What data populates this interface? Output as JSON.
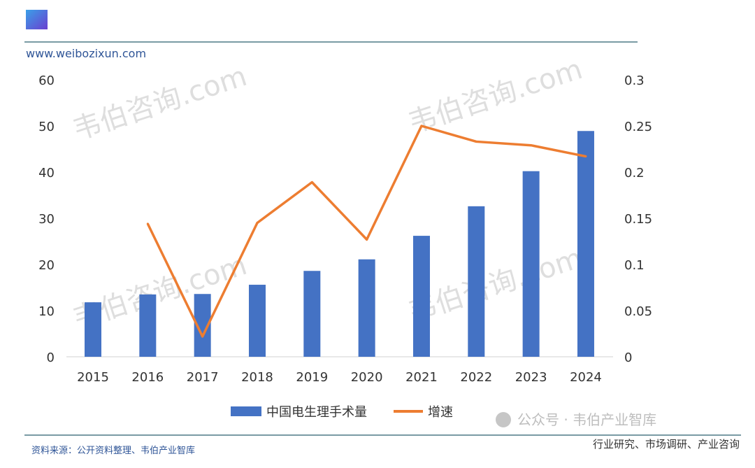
{
  "header": {
    "site_url": "www.weibozixun.com"
  },
  "watermark": {
    "text": "韦伯咨询.com",
    "wechat": "公众号 · 韦伯产业智库",
    "tagline": "行业研究、市场调研、产业咨询"
  },
  "footer": {
    "source": "资料来源：公开资料整理、韦伯产业智库"
  },
  "colors": {
    "bar": "#4472C4",
    "line": "#ED7D31",
    "rule": "#4E7A86",
    "url": "#2F5597"
  },
  "chart_data": {
    "type": "bar+line",
    "categories": [
      "2015",
      "2016",
      "2017",
      "2018",
      "2019",
      "2020",
      "2021",
      "2022",
      "2023",
      "2024"
    ],
    "series": [
      {
        "name": "中国电生理手术量",
        "type": "bar",
        "axis": "left",
        "values": [
          11.8,
          13.5,
          13.6,
          15.6,
          18.6,
          21.1,
          26.2,
          32.6,
          40.2,
          48.9
        ]
      },
      {
        "name": "增速",
        "type": "line",
        "axis": "right",
        "values": [
          null,
          0.144,
          0.022,
          0.145,
          0.189,
          0.127,
          0.25,
          0.233,
          0.229,
          0.217
        ]
      }
    ],
    "ylim_left": [
      0,
      60
    ],
    "yticks_left": [
      "0",
      "10",
      "20",
      "30",
      "40",
      "50",
      "60"
    ],
    "ylim_right": [
      0,
      0.3
    ],
    "yticks_right": [
      "0",
      "0.05",
      "0.1",
      "0.15",
      "0.2",
      "0.25",
      "0.3"
    ],
    "grid": false,
    "legend": "bottom-center"
  }
}
